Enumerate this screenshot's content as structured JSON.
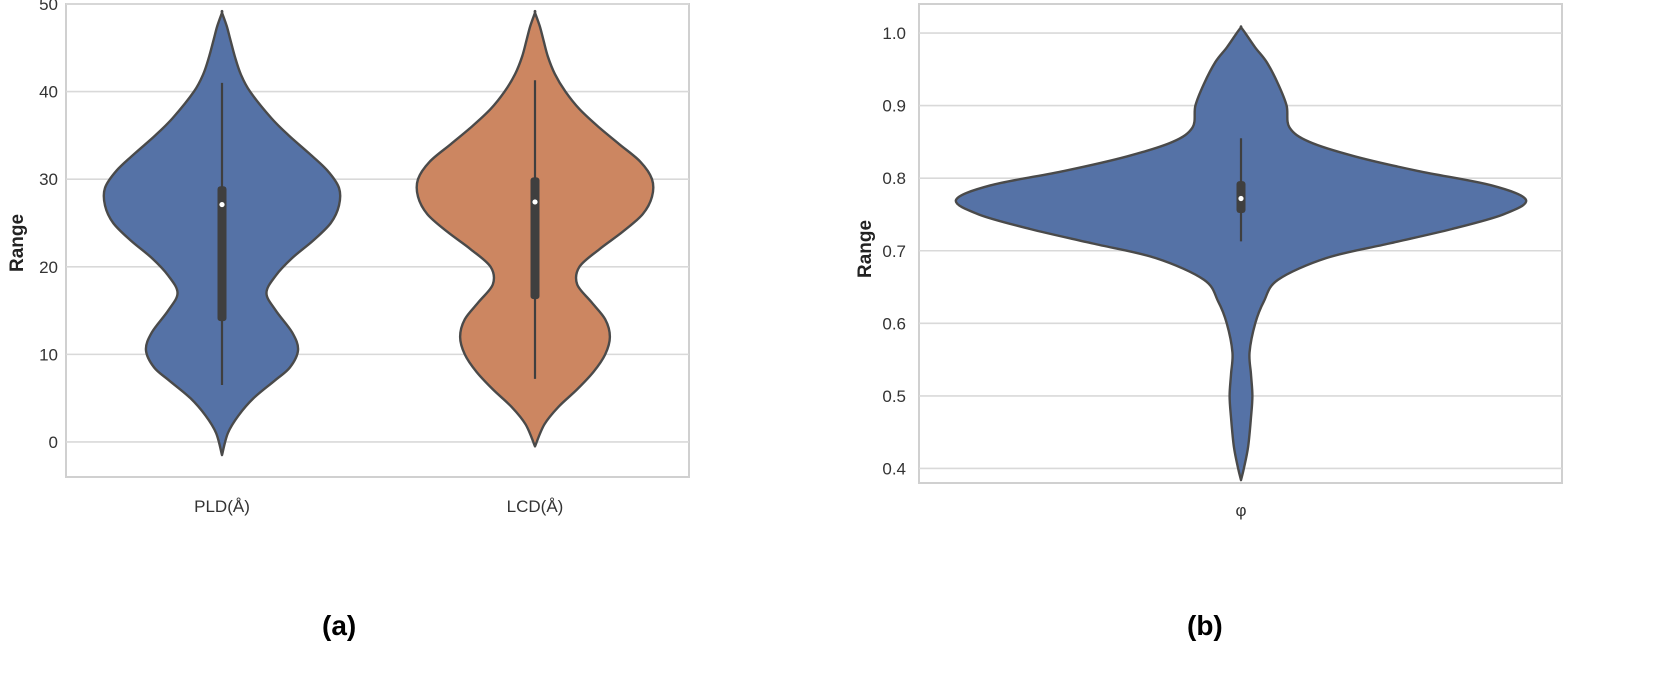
{
  "panels": [
    {
      "label": "(a)",
      "chart_data": {
        "type": "violin",
        "title": "",
        "xlabel": "",
        "ylabel": "Range",
        "ylim": [
          -4,
          50
        ],
        "yticks": [
          0,
          10,
          20,
          30,
          40,
          50
        ],
        "grid": "horizontal",
        "categories": [
          "PLD(Å)",
          "LCD(Å)"
        ],
        "series": [
          {
            "color": "#5572a6",
            "extent": [
              -1.5,
              49
            ],
            "whisker": [
              6.5,
              41
            ],
            "quartiles": [
              13.8,
              29.2
            ],
            "median": 27.1,
            "profile": [
              [
                -1.5,
                0
              ],
              [
                1,
                0.05
              ],
              [
                3,
                0.14
              ],
              [
                5,
                0.27
              ],
              [
                7,
                0.45
              ],
              [
                8.5,
                0.58
              ],
              [
                10.5,
                0.65
              ],
              [
                12.5,
                0.6
              ],
              [
                15,
                0.46
              ],
              [
                17,
                0.38
              ],
              [
                19,
                0.46
              ],
              [
                21,
                0.6
              ],
              [
                23,
                0.78
              ],
              [
                25,
                0.93
              ],
              [
                27,
                1.0
              ],
              [
                29,
                1.0
              ],
              [
                31,
                0.9
              ],
              [
                33,
                0.74
              ],
              [
                35,
                0.57
              ],
              [
                37,
                0.42
              ],
              [
                40,
                0.24
              ],
              [
                42,
                0.16
              ],
              [
                44,
                0.11
              ],
              [
                46,
                0.07
              ],
              [
                47.5,
                0.04
              ],
              [
                49,
                0
              ]
            ]
          },
          {
            "color": "#cc8661",
            "extent": [
              -0.5,
              49
            ],
            "whisker": [
              7.2,
              41.3
            ],
            "quartiles": [
              16.3,
              30.2
            ],
            "median": 27.4,
            "profile": [
              [
                -0.5,
                0
              ],
              [
                2,
                0.08
              ],
              [
                4,
                0.2
              ],
              [
                6,
                0.36
              ],
              [
                8,
                0.5
              ],
              [
                10,
                0.6
              ],
              [
                12,
                0.64
              ],
              [
                14,
                0.6
              ],
              [
                16,
                0.48
              ],
              [
                18,
                0.36
              ],
              [
                20,
                0.38
              ],
              [
                22,
                0.55
              ],
              [
                24,
                0.75
              ],
              [
                26,
                0.92
              ],
              [
                28,
                1.0
              ],
              [
                30,
                1.0
              ],
              [
                32,
                0.9
              ],
              [
                34,
                0.72
              ],
              [
                36,
                0.54
              ],
              [
                38,
                0.38
              ],
              [
                40,
                0.26
              ],
              [
                42,
                0.17
              ],
              [
                44,
                0.11
              ],
              [
                46,
                0.07
              ],
              [
                47.5,
                0.04
              ],
              [
                49,
                0
              ]
            ]
          }
        ]
      }
    },
    {
      "label": "(b)",
      "chart_data": {
        "type": "violin",
        "title": "",
        "xlabel": "",
        "ylabel": "Range",
        "ylim": [
          0.38,
          1.04
        ],
        "yticks": [
          0.4,
          0.5,
          0.6,
          0.7,
          0.8,
          0.9,
          1.0
        ],
        "grid": "horizontal",
        "categories": [
          "φ"
        ],
        "series": [
          {
            "color": "#5572a6",
            "extent": [
              0.384,
              1.008
            ],
            "whisker": [
              0.713,
              0.855
            ],
            "quartiles": [
              0.752,
              0.796
            ],
            "median": 0.772,
            "profile": [
              [
                0.384,
                0
              ],
              [
                0.4,
                0.01
              ],
              [
                0.43,
                0.025
              ],
              [
                0.47,
                0.035
              ],
              [
                0.5,
                0.04
              ],
              [
                0.53,
                0.035
              ],
              [
                0.56,
                0.03
              ],
              [
                0.6,
                0.05
              ],
              [
                0.63,
                0.08
              ],
              [
                0.66,
                0.13
              ],
              [
                0.69,
                0.3
              ],
              [
                0.71,
                0.52
              ],
              [
                0.73,
                0.74
              ],
              [
                0.75,
                0.92
              ],
              [
                0.77,
                1.0
              ],
              [
                0.79,
                0.88
              ],
              [
                0.81,
                0.62
              ],
              [
                0.83,
                0.4
              ],
              [
                0.85,
                0.24
              ],
              [
                0.87,
                0.17
              ],
              [
                0.9,
                0.16
              ],
              [
                0.93,
                0.13
              ],
              [
                0.96,
                0.09
              ],
              [
                0.98,
                0.05
              ],
              [
                1.0,
                0.015
              ],
              [
                1.008,
                0
              ]
            ]
          }
        ]
      }
    }
  ]
}
